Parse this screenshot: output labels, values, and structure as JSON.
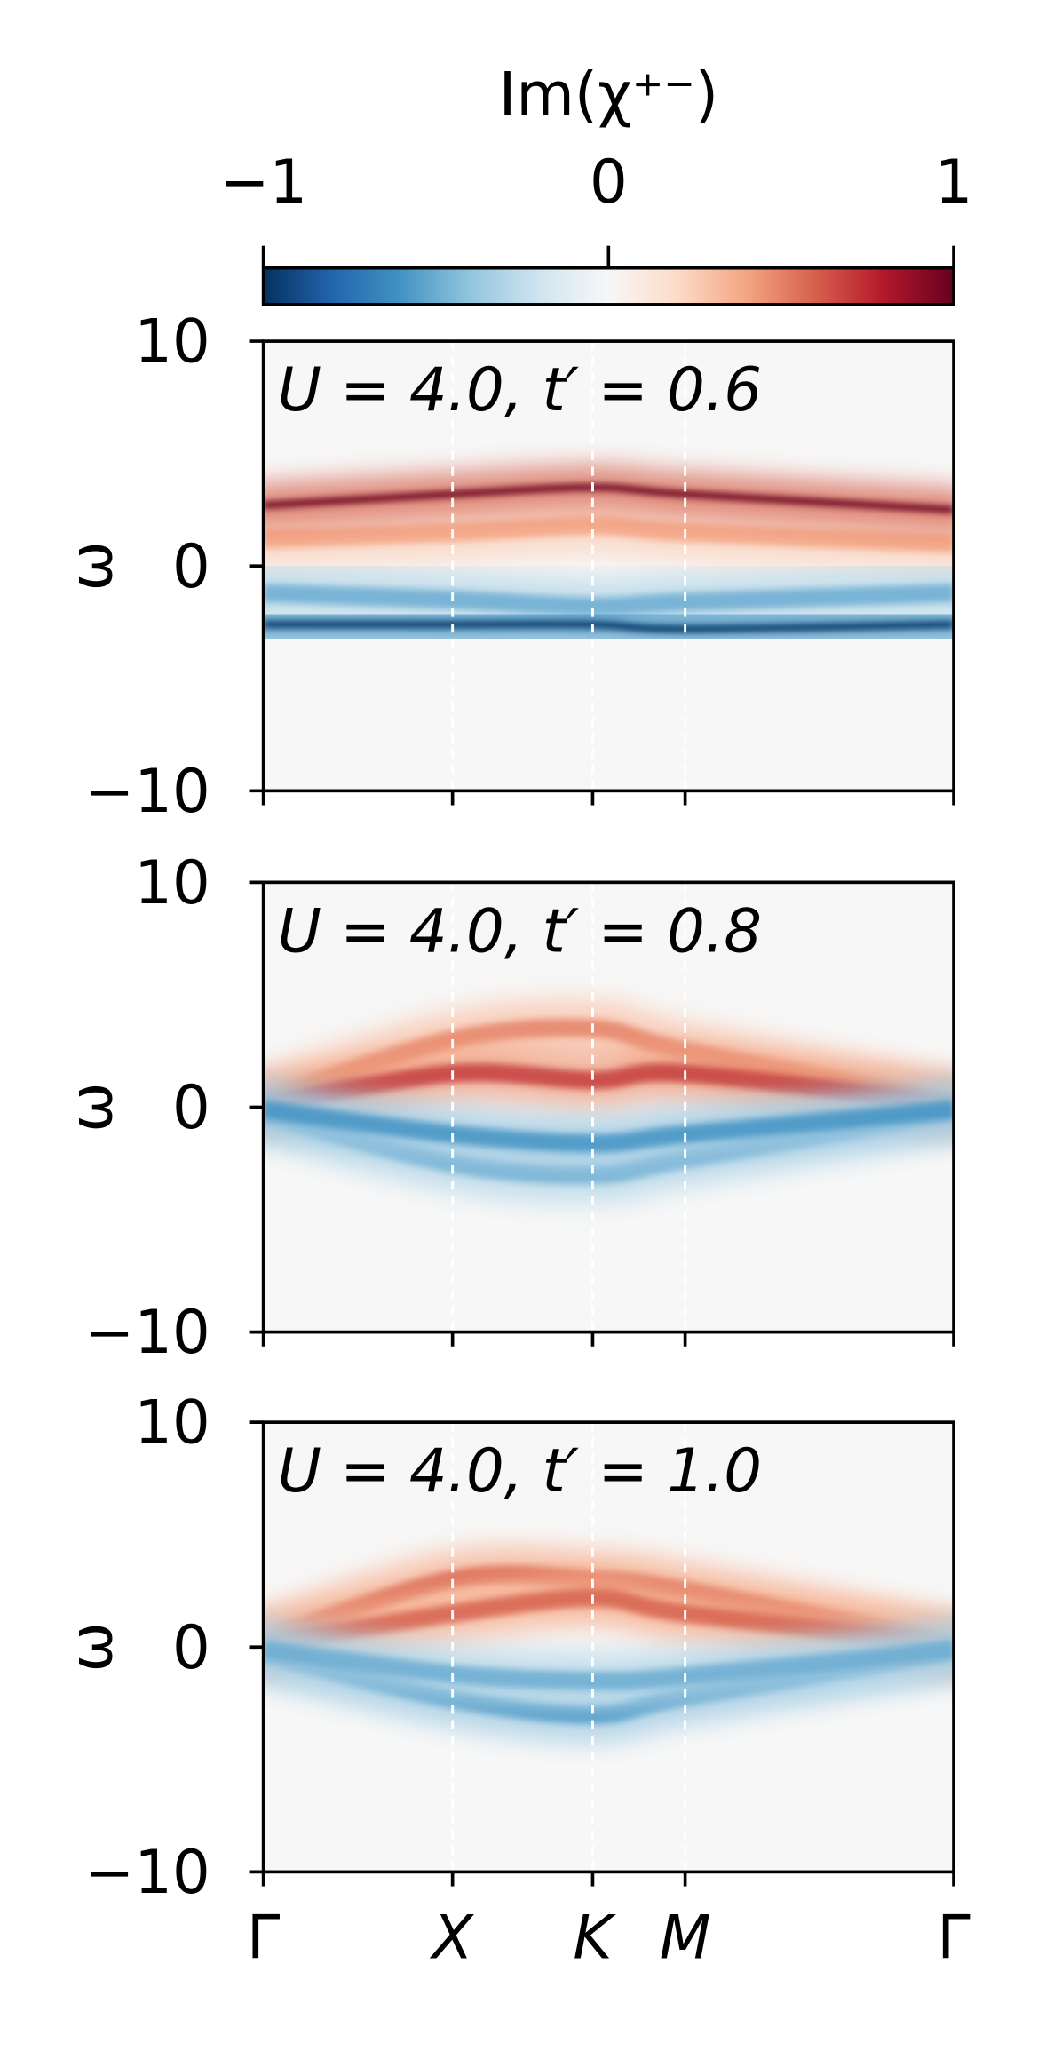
{
  "chart_data": [
    {
      "type": "colorbar",
      "label": "Im(χ⁺⁻)",
      "lim": [
        -1,
        1
      ],
      "ticks": [
        {
          "value": -1,
          "label": "−1"
        },
        0,
        1
      ],
      "colors": [
        "#053061",
        "#2166ac",
        "#4393c3",
        "#92c5de",
        "#d1e5f0",
        "#f7f7f7",
        "#fddbc7",
        "#f4a582",
        "#d6604d",
        "#b2182b",
        "#67001f"
      ]
    },
    {
      "type": "heatmap",
      "annotation": "U = 4.0, t′ = 0.6",
      "ylabel": "ω",
      "xlim": [
        0,
        1
      ],
      "x": [
        0,
        0.274,
        0.477,
        0.611,
        1
      ],
      "ylim": [
        -10,
        10
      ],
      "yticks": [
        {
          "value": -10,
          "label": "−10"
        },
        0,
        10
      ],
      "bands": [
        {
          "values": [
            1.2,
            1.5,
            1.8,
            1.5,
            1.0
          ],
          "intensity": 0.4
        },
        {
          "values": [
            2.7,
            3.2,
            3.5,
            3.2,
            2.5
          ],
          "intensity": 1
        },
        {
          "values": [
            -1.2,
            -1.5,
            -1.8,
            -1.6,
            -1.2
          ],
          "intensity": -0.5
        },
        {
          "values": [
            -2.6,
            -2.6,
            -2.6,
            -2.8,
            -2.6
          ],
          "intensity": -1
        }
      ]
    },
    {
      "type": "heatmap",
      "annotation": "U = 4.0, t′ = 0.8",
      "ylabel": "ω",
      "xlim": [
        0,
        1
      ],
      "x": [
        0,
        0.274,
        0.477,
        0.611,
        1
      ],
      "ylim": [
        -10,
        10
      ],
      "yticks": [
        {
          "value": -10,
          "label": "−10"
        },
        0,
        10
      ],
      "bands": [
        {
          "values": [
            0.3,
            3.0,
            3.5,
            2.5,
            0.2
          ],
          "intensity": 0.5
        },
        {
          "values": [
            0.1,
            1.5,
            1.2,
            1.5,
            0.1
          ],
          "intensity": 0.7
        },
        {
          "values": [
            -0.3,
            -2.5,
            -3.0,
            -2.3,
            -0.2
          ],
          "intensity": -0.5
        },
        {
          "values": [
            -0.1,
            -1.2,
            -1.6,
            -1.2,
            -0.1
          ],
          "intensity": -0.6
        }
      ]
    },
    {
      "type": "heatmap",
      "annotation": "U = 4.0, t′ = 1.0",
      "ylabel": "ω",
      "xlim": [
        0,
        1
      ],
      "x": [
        0,
        0.274,
        0.477,
        0.611,
        1
      ],
      "ylim": [
        -10,
        10
      ],
      "yticks": [
        {
          "value": -10,
          "label": "−10"
        },
        0,
        10
      ],
      "xticks": [
        {
          "value": 0,
          "label": "Γ"
        },
        {
          "value": 0.274,
          "label": "X"
        },
        {
          "value": 0.477,
          "label": "K"
        },
        {
          "value": 0.611,
          "label": "M"
        },
        {
          "value": 1,
          "label": "Γ"
        }
      ],
      "bands": [
        {
          "values": [
            0.3,
            3.0,
            3.0,
            2.5,
            0.2
          ],
          "intensity": 0.6
        },
        {
          "values": [
            0.1,
            1.5,
            2.2,
            1.5,
            0.1
          ],
          "intensity": 0.6
        },
        {
          "values": [
            -0.3,
            -2.3,
            -3.0,
            -2.2,
            -0.2
          ],
          "intensity": -0.6
        },
        {
          "values": [
            -0.1,
            -1.2,
            -1.5,
            -1.3,
            -0.1
          ],
          "intensity": -0.5
        }
      ]
    }
  ]
}
